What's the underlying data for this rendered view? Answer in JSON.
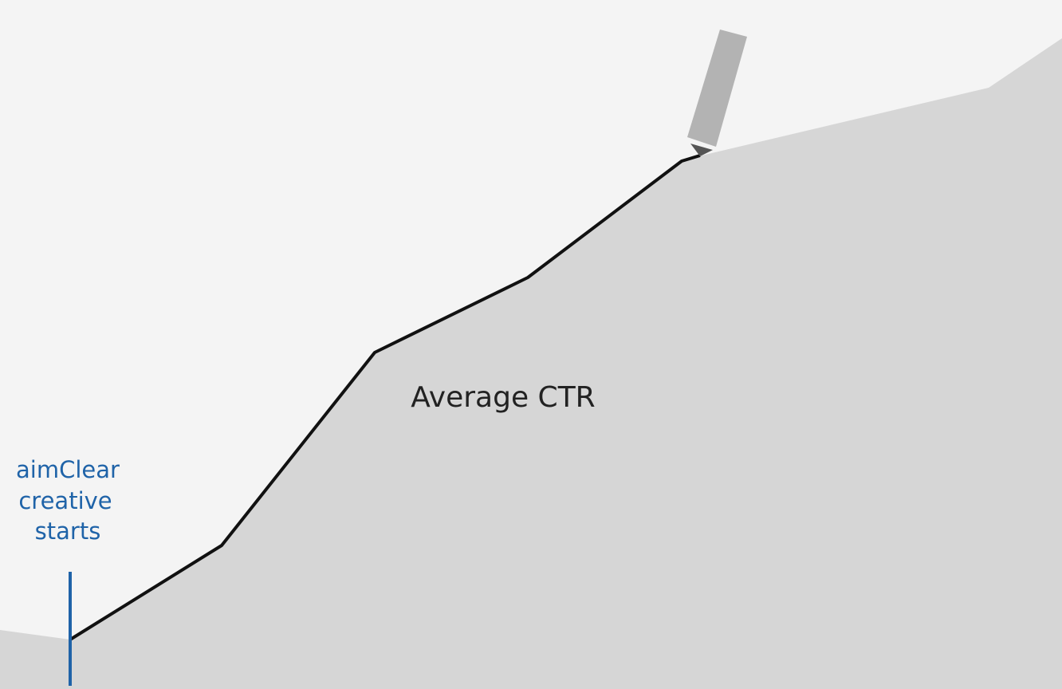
{
  "area_label": "Average CTR",
  "annotation": {
    "lines": [
      "aimClear",
      "creative",
      "starts"
    ]
  }
}
